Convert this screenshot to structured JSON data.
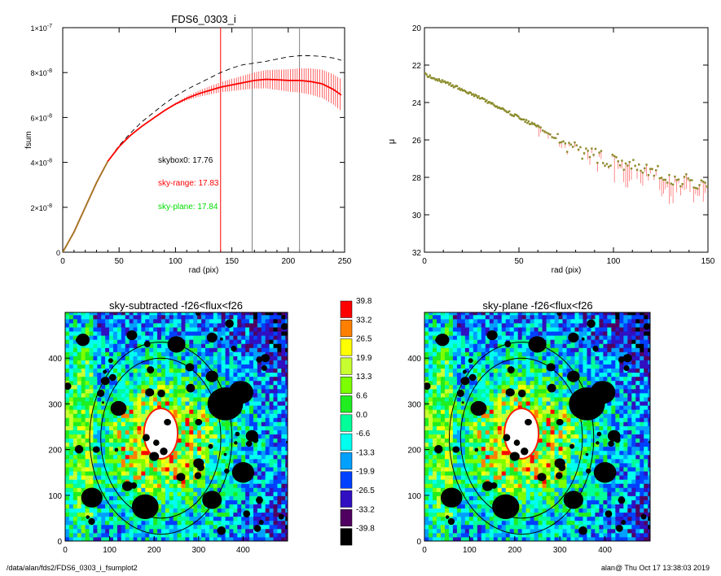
{
  "chart_data": [
    {
      "type": "line",
      "title": "FDS6_0303_i",
      "xlabel": "rad (pix)",
      "ylabel": "fsum",
      "xlim": [
        0,
        250
      ],
      "ylim": [
        0,
        1e-07
      ],
      "x_ticks": [
        "0",
        "50",
        "100",
        "150",
        "200",
        "250"
      ],
      "y_tick_mantissas": [
        "0",
        "2×10",
        "4×10",
        "6×10",
        "8×10",
        "1×10"
      ],
      "y_tick_exponent": "-8",
      "y_tick_top_exponent": "-7",
      "annotations": [
        {
          "text": "skybox0: 17.76",
          "color": "#000000"
        },
        {
          "text": "sky-range: 17.83",
          "color": "#ff0000"
        },
        {
          "text": "sky-plane: 17.84",
          "color": "#00dd00"
        }
      ],
      "vlines": [
        {
          "x": 140,
          "color": "#ff0000"
        },
        {
          "x": 168,
          "color": "#808080"
        },
        {
          "x": 210,
          "color": "#808080"
        }
      ],
      "series": [
        {
          "style": "dashed",
          "color": "#000000",
          "x": [
            0,
            10,
            20,
            30,
            40,
            50,
            60,
            70,
            80,
            90,
            100,
            110,
            120,
            130,
            140,
            150,
            160,
            170,
            180,
            190,
            200,
            210,
            220,
            230,
            240,
            247
          ],
          "y": [
            0,
            9e-09,
            2e-08,
            3.1e-08,
            4.05e-08,
            4.75e-08,
            5.3e-08,
            5.8e-08,
            6.2e-08,
            6.6e-08,
            6.95e-08,
            7.25e-08,
            7.5e-08,
            7.75e-08,
            8e-08,
            8.2e-08,
            8.35e-08,
            8.42e-08,
            8.5e-08,
            8.6e-08,
            8.7e-08,
            8.75e-08,
            8.75e-08,
            8.72e-08,
            8.65e-08,
            8.55e-08
          ]
        },
        {
          "style": "solid",
          "color": "#ff0000",
          "x": [
            0,
            10,
            20,
            30,
            40,
            50,
            60,
            70,
            80,
            90,
            100,
            110,
            120,
            130,
            140,
            150,
            160,
            170,
            180,
            190,
            200,
            210,
            220,
            230,
            240,
            247
          ],
          "y": [
            0,
            9e-09,
            2e-08,
            3.1e-08,
            4.05e-08,
            4.7e-08,
            5.2e-08,
            5.6e-08,
            5.95e-08,
            6.3e-08,
            6.6e-08,
            6.85e-08,
            7.05e-08,
            7.2e-08,
            7.35e-08,
            7.45e-08,
            7.55e-08,
            7.65e-08,
            7.7e-08,
            7.68e-08,
            7.65e-08,
            7.65e-08,
            7.6e-08,
            7.5e-08,
            7.25e-08,
            7e-08
          ]
        }
      ]
    },
    {
      "type": "scatter",
      "xlabel": "rad (pix)",
      "ylabel": "μ",
      "xlim": [
        0,
        150
      ],
      "ylim": [
        32,
        20
      ],
      "x_ticks": [
        "0",
        "50",
        "100",
        "150"
      ],
      "y_ticks": [
        "20",
        "22",
        "24",
        "26",
        "28",
        "30",
        "32"
      ],
      "trend": {
        "x": [
          0,
          20,
          40,
          60,
          70,
          80,
          100,
          120,
          140,
          150
        ],
        "y": [
          22.5,
          23.3,
          24.3,
          25.3,
          26.0,
          26.5,
          27.2,
          27.7,
          28.2,
          28.5
        ]
      },
      "point_color": "#8a8a2a"
    },
    {
      "type": "heatmap",
      "title": "sky-subtracted -f26<flux<f26",
      "xlim": [
        0,
        500
      ],
      "ylim": [
        0,
        500
      ],
      "x_ticks": [
        "0",
        "100",
        "200",
        "300",
        "400"
      ],
      "y_ticks": [
        "0",
        "100",
        "200",
        "300",
        "400"
      ]
    },
    {
      "type": "heatmap",
      "title": "sky-plane -f26<flux<f26",
      "xlim": [
        0,
        500
      ],
      "ylim": [
        0,
        500
      ],
      "x_ticks": [
        "0",
        "100",
        "200",
        "300",
        "400"
      ],
      "y_ticks": [
        "0",
        "100",
        "200",
        "300",
        "400"
      ]
    }
  ],
  "colorbar": [
    {
      "label": "39.8",
      "color": "#ff0000"
    },
    {
      "label": "33.2",
      "color": "#ff8000"
    },
    {
      "label": "26.5",
      "color": "#ffff00"
    },
    {
      "label": "19.9",
      "color": "#c8ff30"
    },
    {
      "label": "13.3",
      "color": "#7cff00"
    },
    {
      "label": "6.6",
      "color": "#20ee20"
    },
    {
      "label": "0.0",
      "color": "#00ff99"
    },
    {
      "label": "-6.6",
      "color": "#00ffee"
    },
    {
      "label": "-13.3",
      "color": "#00a0ff"
    },
    {
      "label": "-19.9",
      "color": "#0040ff"
    },
    {
      "label": "-26.5",
      "color": "#3010c0"
    },
    {
      "label": "-33.2",
      "color": "#500060"
    },
    {
      "label": "-39.8",
      "color": "#000000"
    }
  ],
  "footer": {
    "left": "/data/alan/fds2/FDS6_0303_i_fsumplot2",
    "right": "alan@  Thu Oct 17 13:38:03 2019"
  }
}
